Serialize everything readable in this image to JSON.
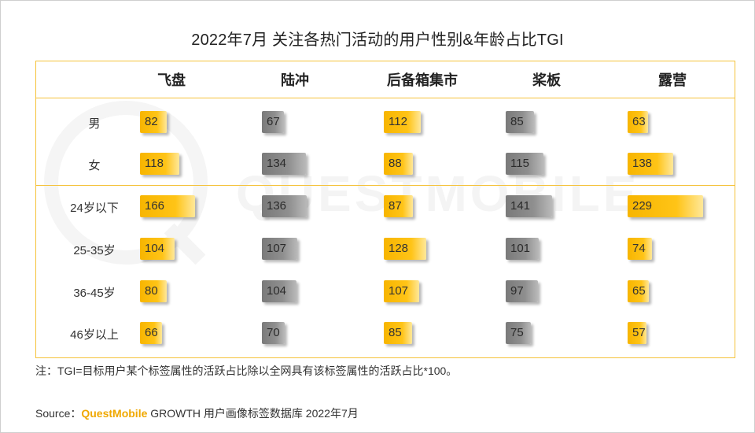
{
  "title": "2022年7月 关注各热门活动的用户性别&年龄占比TGI",
  "watermark": "QUESTMOBILE",
  "note": "注：TGI=目标用户某个标签属性的活跃占比除以全网具有该标签属性的活跃占比*100。",
  "source": {
    "prefix": "Source：",
    "brand": "QuestMobile",
    "rest": " GROWTH 用户画像标签数据库 2022年7月"
  },
  "colors": {
    "accent": "#f5c23a",
    "gold_bar": "#ffc417",
    "gray_bar": "#8f8f8f"
  },
  "chart_data": {
    "type": "table",
    "title": "2022年7月 关注各热门活动的用户性别&年龄占比TGI",
    "columns": [
      "飞盘",
      "陆冲",
      "后备箱集市",
      "桨板",
      "露营"
    ],
    "rows": [
      "男",
      "女",
      "24岁以下",
      "25-35岁",
      "36-45岁",
      "46岁以上"
    ],
    "values": [
      [
        82,
        67,
        112,
        85,
        63
      ],
      [
        118,
        134,
        88,
        115,
        138
      ],
      [
        166,
        136,
        87,
        141,
        229
      ],
      [
        104,
        107,
        128,
        101,
        74
      ],
      [
        80,
        104,
        107,
        97,
        65
      ],
      [
        66,
        70,
        85,
        75,
        57
      ]
    ],
    "bar_color": [
      "gold",
      "gray",
      "gold",
      "gray",
      "gold"
    ]
  }
}
